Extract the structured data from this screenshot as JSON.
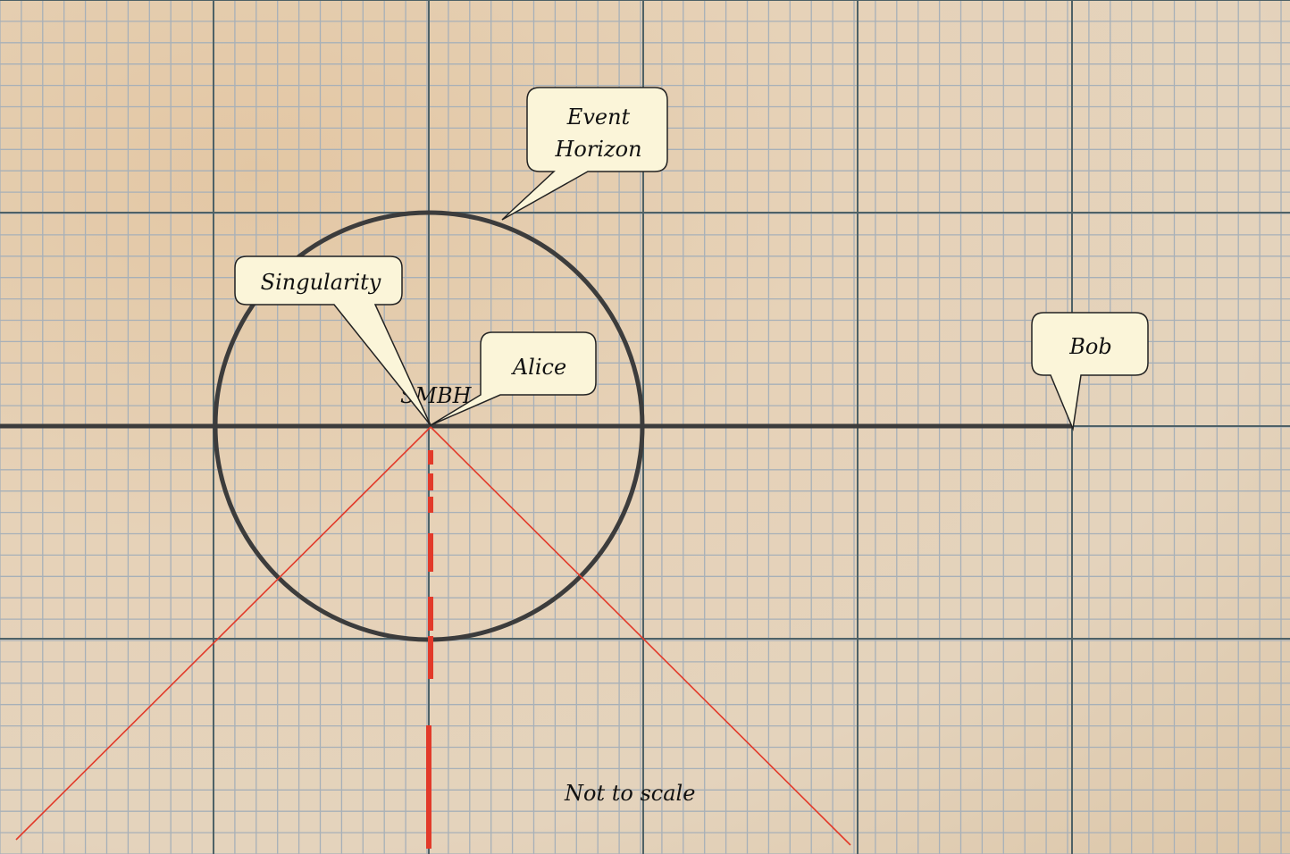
{
  "labels": {
    "event_horizon_line1": "Event",
    "event_horizon_line2": "Horizon",
    "singularity": "Singularity",
    "alice": "Alice",
    "bob": "Bob",
    "smbh": "SMBH",
    "note": "Not to scale"
  },
  "colors": {
    "grid_minor": "#a7b0b8",
    "grid_major": "#4e6166",
    "ink": "#3c3c3c",
    "red": "#e23a2a",
    "callout_fill": "#fbf5d9"
  }
}
